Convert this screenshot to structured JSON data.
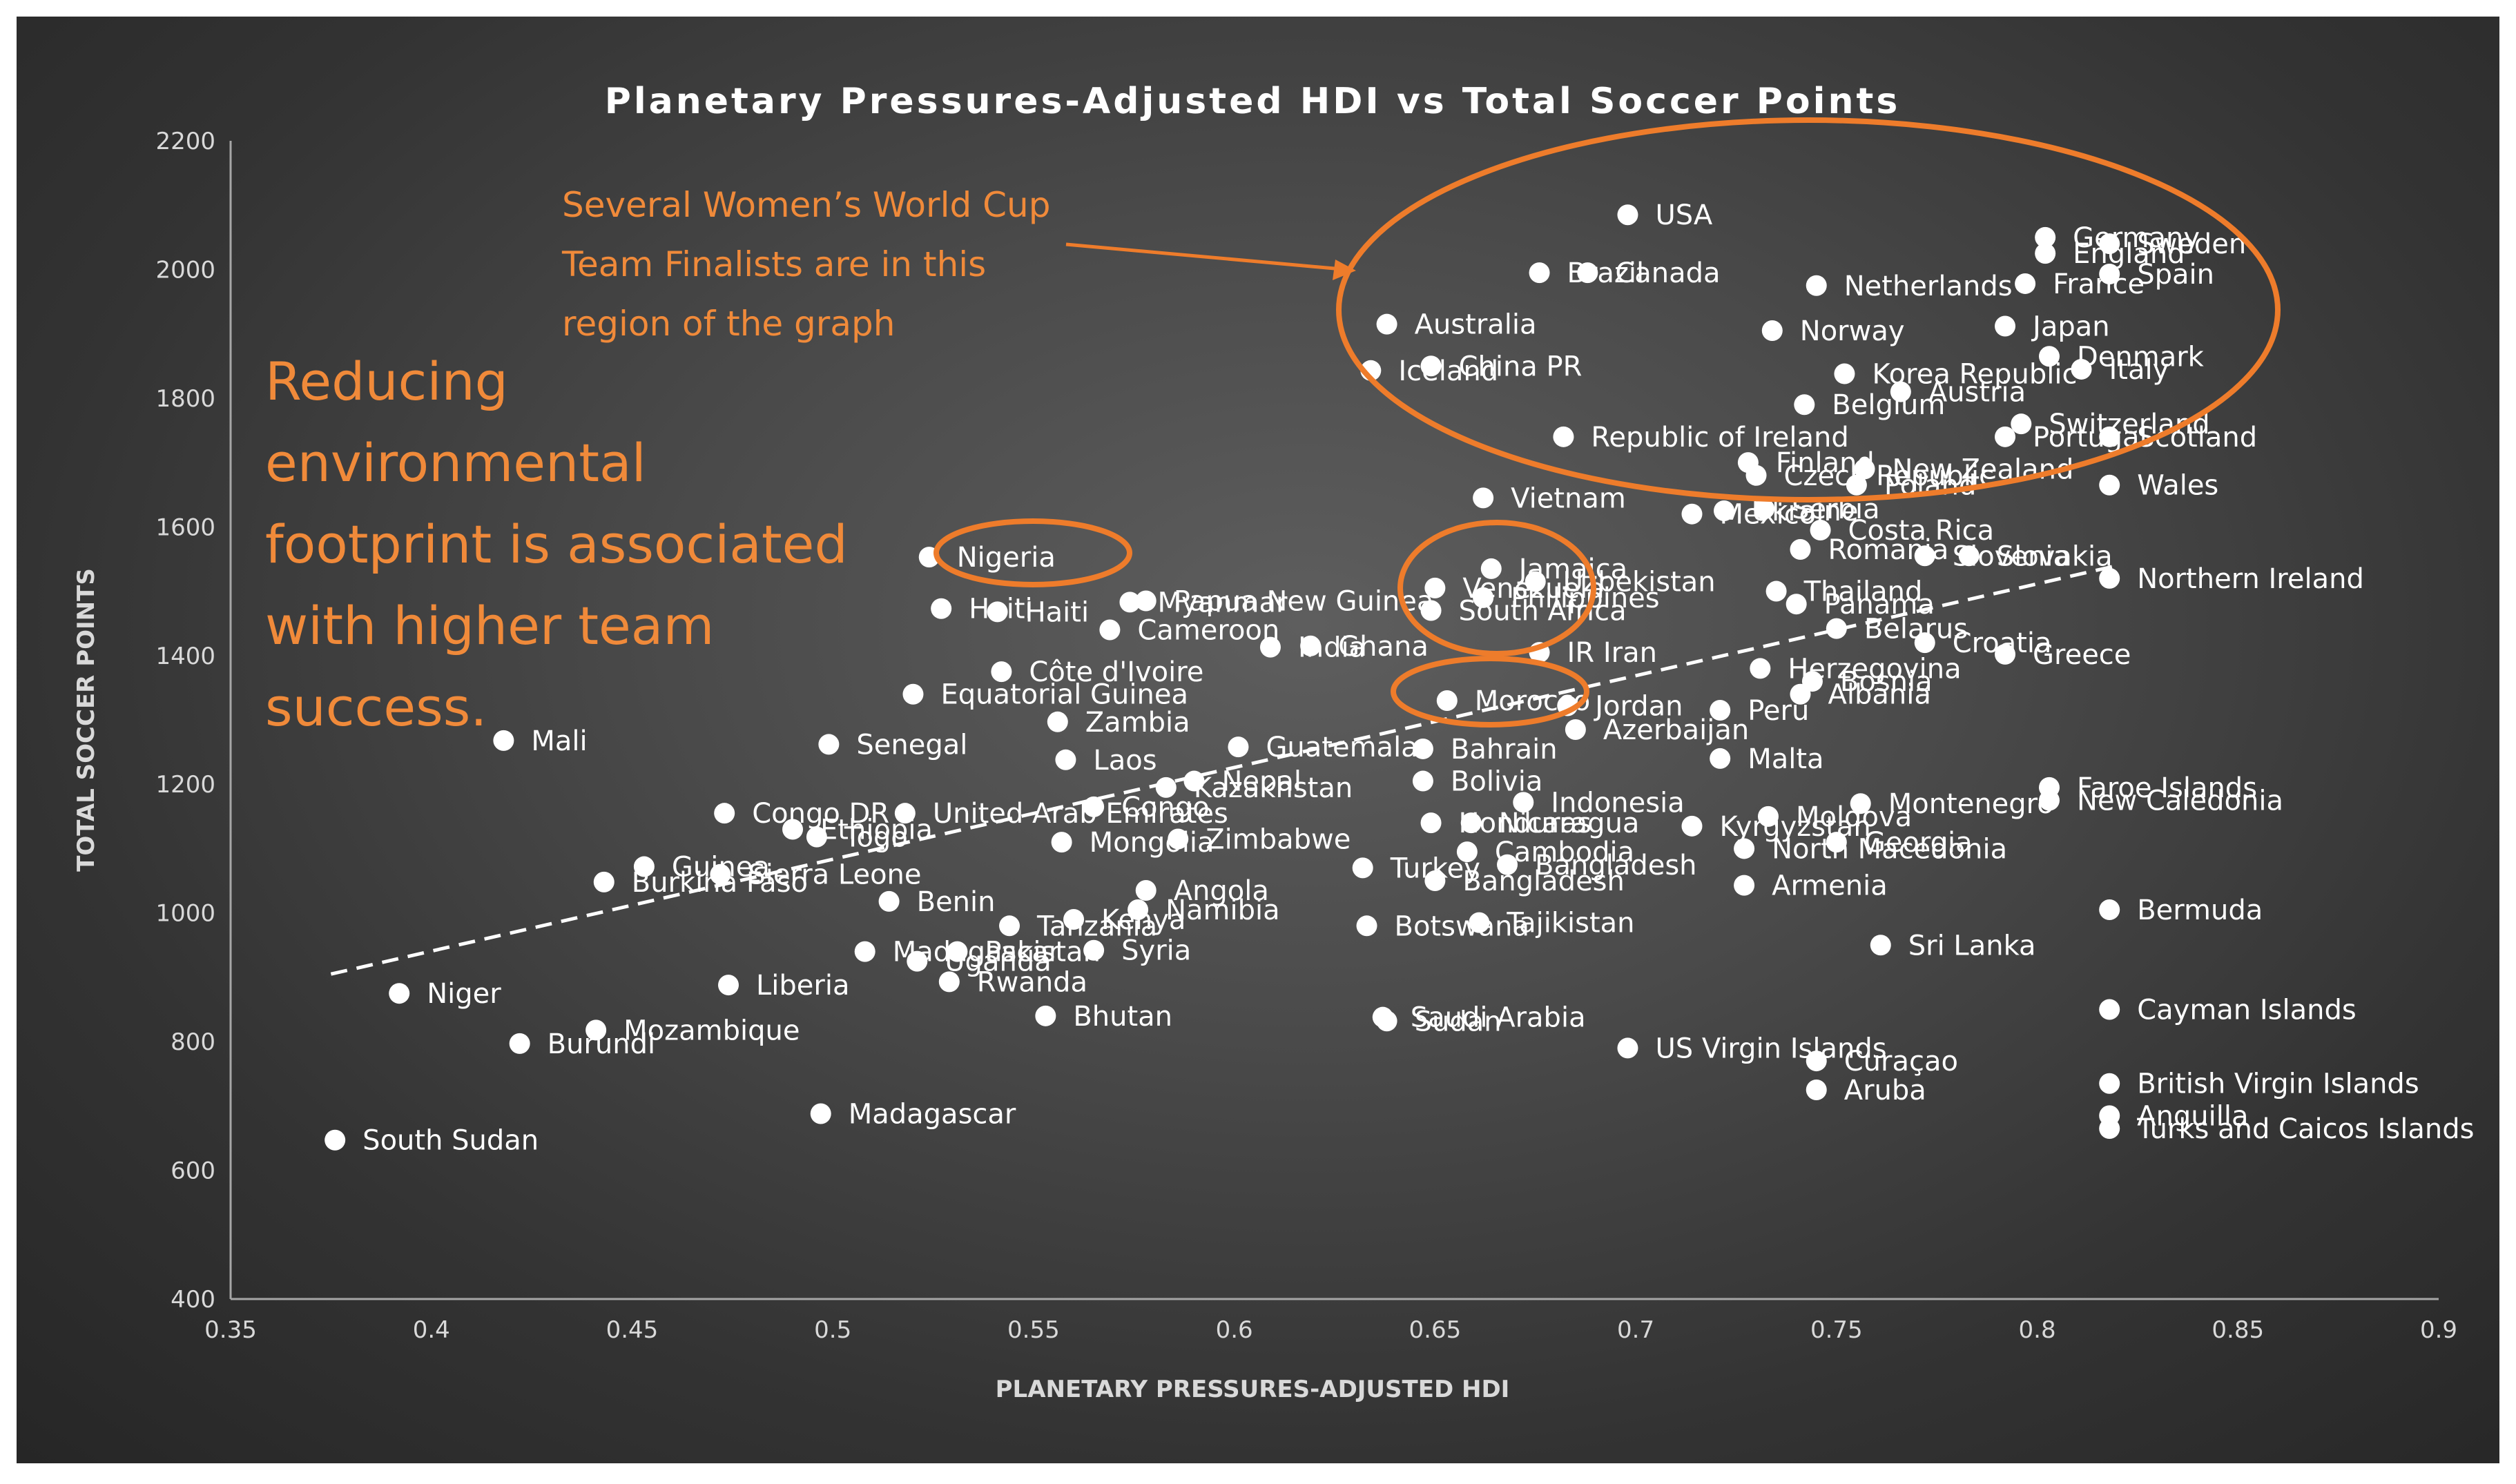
{
  "chart_data": {
    "type": "scatter",
    "title": "Planetary Pressures-Adjusted HDI vs Total Soccer Points",
    "xlabel": "PLANETARY PRESSURES-ADJUSTED HDI",
    "ylabel": "TOTAL SOCCER POINTS",
    "xlim": [
      0.35,
      0.9
    ],
    "ylim": [
      400,
      2200
    ],
    "xticks": [
      "0.35",
      "0.4",
      "0.45",
      "0.5",
      "0.55",
      "0.6",
      "0.65",
      "0.7",
      "0.75",
      "0.8",
      "0.85",
      "0.9"
    ],
    "yticks": [
      "400",
      "600",
      "800",
      "1000",
      "1200",
      "1400",
      "1600",
      "1800",
      "2000",
      "2200"
    ],
    "grid": false,
    "trendline": {
      "style": "dashed",
      "from": [
        0.375,
        905
      ],
      "to": [
        0.82,
        1540
      ]
    },
    "annotations": [
      {
        "id": "finalists",
        "lines": [
          "Several Women’s World Cup",
          "Team Finalists are in this",
          "region of the graph"
        ]
      },
      {
        "id": "footprint",
        "lines": [
          "Reducing",
          "environmental",
          "footprint is associated",
          "with higher team",
          "success."
        ]
      }
    ],
    "highlight_colors": {
      "annotation": "#f08a3a",
      "ellipse": "#ee7c2b"
    },
    "points": [
      {
        "x": 0.698,
        "y": 2085,
        "label": "USA"
      },
      {
        "x": 0.676,
        "y": 1995,
        "label": "Brazil"
      },
      {
        "x": 0.688,
        "y": 1995,
        "label": "Canada"
      },
      {
        "x": 0.745,
        "y": 1975,
        "label": "Netherlands"
      },
      {
        "x": 0.638,
        "y": 1915,
        "label": "Australia"
      },
      {
        "x": 0.734,
        "y": 1905,
        "label": "Norway"
      },
      {
        "x": 0.649,
        "y": 1850,
        "label": "China PR"
      },
      {
        "x": 0.634,
        "y": 1843,
        "label": "Iceland"
      },
      {
        "x": 0.802,
        "y": 2050,
        "label": "Germany"
      },
      {
        "x": 0.818,
        "y": 2040,
        "label": "Sweden"
      },
      {
        "x": 0.802,
        "y": 2025,
        "label": "England"
      },
      {
        "x": 0.818,
        "y": 1993,
        "label": "Spain"
      },
      {
        "x": 0.797,
        "y": 1978,
        "label": "France"
      },
      {
        "x": 0.792,
        "y": 1912,
        "label": "Japan"
      },
      {
        "x": 0.803,
        "y": 1865,
        "label": "Denmark"
      },
      {
        "x": 0.752,
        "y": 1838,
        "label": "Korea Republic"
      },
      {
        "x": 0.811,
        "y": 1845,
        "label": "Italy"
      },
      {
        "x": 0.766,
        "y": 1810,
        "label": "Austria"
      },
      {
        "x": 0.742,
        "y": 1790,
        "label": "Belgium"
      },
      {
        "x": 0.796,
        "y": 1760,
        "label": "Switzerland"
      },
      {
        "x": 0.792,
        "y": 1740,
        "label": "Portugal"
      },
      {
        "x": 0.818,
        "y": 1740,
        "label": "Scotland"
      },
      {
        "x": 0.682,
        "y": 1740,
        "label": "Republic of Ireland"
      },
      {
        "x": 0.728,
        "y": 1700,
        "label": "Finland"
      },
      {
        "x": 0.757,
        "y": 1690,
        "label": "New Zealand"
      },
      {
        "x": 0.73,
        "y": 1680,
        "label": "Czech Republic"
      },
      {
        "x": 0.755,
        "y": 1665,
        "label": "Poland"
      },
      {
        "x": 0.818,
        "y": 1665,
        "label": "Wales"
      },
      {
        "x": 0.662,
        "y": 1645,
        "label": "Vietnam"
      },
      {
        "x": 0.714,
        "y": 1620,
        "label": "Mexico"
      },
      {
        "x": 0.722,
        "y": 1625,
        "label": "Ukraine"
      },
      {
        "x": 0.732,
        "y": 1628,
        "label": "Serbia"
      },
      {
        "x": 0.746,
        "y": 1595,
        "label": "Costa Rica"
      },
      {
        "x": 0.741,
        "y": 1565,
        "label": "Romania"
      },
      {
        "x": 0.772,
        "y": 1555,
        "label": "Slovenia"
      },
      {
        "x": 0.783,
        "y": 1555,
        "label": "Slovakia"
      },
      {
        "x": 0.818,
        "y": 1520,
        "label": "Northern Ireland"
      },
      {
        "x": 0.524,
        "y": 1553,
        "label": "Nigeria"
      },
      {
        "x": 0.664,
        "y": 1535,
        "label": "Jamaica"
      },
      {
        "x": 0.675,
        "y": 1515,
        "label": "Uzbekistan"
      },
      {
        "x": 0.65,
        "y": 1505,
        "label": "Venezuela"
      },
      {
        "x": 0.662,
        "y": 1490,
        "label": "Philippines"
      },
      {
        "x": 0.649,
        "y": 1470,
        "label": "South Africa"
      },
      {
        "x": 0.735,
        "y": 1500,
        "label": "Thailand"
      },
      {
        "x": 0.74,
        "y": 1480,
        "label": "Panama"
      },
      {
        "x": 0.578,
        "y": 1485,
        "label": "Papua New Guinea"
      },
      {
        "x": 0.574,
        "y": 1483,
        "label": "Myanmar"
      },
      {
        "x": 0.527,
        "y": 1473,
        "label": "Haiti"
      },
      {
        "x": 0.541,
        "y": 1468,
        "label": "Haiti"
      },
      {
        "x": 0.569,
        "y": 1440,
        "label": "Cameroon"
      },
      {
        "x": 0.609,
        "y": 1413,
        "label": "India"
      },
      {
        "x": 0.619,
        "y": 1415,
        "label": "Ghana"
      },
      {
        "x": 0.676,
        "y": 1405,
        "label": "IR Iran"
      },
      {
        "x": 0.75,
        "y": 1442,
        "label": "Belarus"
      },
      {
        "x": 0.772,
        "y": 1420,
        "label": "Croatia"
      },
      {
        "x": 0.792,
        "y": 1402,
        "label": "Greece"
      },
      {
        "x": 0.731,
        "y": 1380,
        "label": "Herzegovina"
      },
      {
        "x": 0.744,
        "y": 1360,
        "label": "Bosnia"
      },
      {
        "x": 0.741,
        "y": 1340,
        "label": "Albania"
      },
      {
        "x": 0.542,
        "y": 1375,
        "label": "Côte d'Ivoire"
      },
      {
        "x": 0.52,
        "y": 1340,
        "label": "Equatorial Guinea"
      },
      {
        "x": 0.653,
        "y": 1330,
        "label": "Morocco"
      },
      {
        "x": 0.683,
        "y": 1322,
        "label": "Jordan"
      },
      {
        "x": 0.721,
        "y": 1315,
        "label": "Peru"
      },
      {
        "x": 0.685,
        "y": 1285,
        "label": "Azerbaijan"
      },
      {
        "x": 0.556,
        "y": 1297,
        "label": "Zambia"
      },
      {
        "x": 0.418,
        "y": 1268,
        "label": "Mali"
      },
      {
        "x": 0.499,
        "y": 1262,
        "label": "Senegal"
      },
      {
        "x": 0.601,
        "y": 1258,
        "label": "Guatemala"
      },
      {
        "x": 0.647,
        "y": 1255,
        "label": "Bahrain"
      },
      {
        "x": 0.558,
        "y": 1238,
        "label": "Laos"
      },
      {
        "x": 0.721,
        "y": 1240,
        "label": "Malta"
      },
      {
        "x": 0.647,
        "y": 1205,
        "label": "Bolivia"
      },
      {
        "x": 0.583,
        "y": 1195,
        "label": "Kazakhstan"
      },
      {
        "x": 0.59,
        "y": 1205,
        "label": "Nepal"
      },
      {
        "x": 0.803,
        "y": 1195,
        "label": "Faroe Islands"
      },
      {
        "x": 0.803,
        "y": 1175,
        "label": "New Caledonia"
      },
      {
        "x": 0.756,
        "y": 1170,
        "label": "Montenegro"
      },
      {
        "x": 0.473,
        "y": 1155,
        "label": "Congo DR"
      },
      {
        "x": 0.518,
        "y": 1155,
        "label": "United Arab Emirates"
      },
      {
        "x": 0.565,
        "y": 1165,
        "label": "Congo"
      },
      {
        "x": 0.672,
        "y": 1172,
        "label": "Indonesia"
      },
      {
        "x": 0.649,
        "y": 1140,
        "label": "Honduras"
      },
      {
        "x": 0.659,
        "y": 1140,
        "label": "Nicaragua"
      },
      {
        "x": 0.733,
        "y": 1150,
        "label": "Moldova"
      },
      {
        "x": 0.49,
        "y": 1130,
        "label": "Ethiopia"
      },
      {
        "x": 0.496,
        "y": 1118,
        "label": "Togo"
      },
      {
        "x": 0.557,
        "y": 1110,
        "label": "Mongolia"
      },
      {
        "x": 0.586,
        "y": 1115,
        "label": "Zimbabwe"
      },
      {
        "x": 0.714,
        "y": 1135,
        "label": "Kyrgyzstan"
      },
      {
        "x": 0.75,
        "y": 1110,
        "label": "Georgia"
      },
      {
        "x": 0.658,
        "y": 1095,
        "label": "Cambodia"
      },
      {
        "x": 0.727,
        "y": 1100,
        "label": "North Macedonia"
      },
      {
        "x": 0.453,
        "y": 1072,
        "label": "Guinea"
      },
      {
        "x": 0.632,
        "y": 1070,
        "label": "Turkey"
      },
      {
        "x": 0.668,
        "y": 1075,
        "label": "Bangladesh"
      },
      {
        "x": 0.472,
        "y": 1060,
        "label": "Sierra Leone"
      },
      {
        "x": 0.443,
        "y": 1048,
        "label": "Burkina Faso"
      },
      {
        "x": 0.65,
        "y": 1050,
        "label": "Bangladesh"
      },
      {
        "x": 0.727,
        "y": 1043,
        "label": "Armenia"
      },
      {
        "x": 0.578,
        "y": 1035,
        "label": "Angola"
      },
      {
        "x": 0.514,
        "y": 1018,
        "label": "Benin"
      },
      {
        "x": 0.576,
        "y": 1005,
        "label": "Namibia"
      },
      {
        "x": 0.818,
        "y": 1005,
        "label": "Bermuda"
      },
      {
        "x": 0.661,
        "y": 985,
        "label": "Tajikistan"
      },
      {
        "x": 0.633,
        "y": 980,
        "label": "Botswana"
      },
      {
        "x": 0.544,
        "y": 980,
        "label": "Tanzania"
      },
      {
        "x": 0.56,
        "y": 990,
        "label": "Kenya"
      },
      {
        "x": 0.761,
        "y": 950,
        "label": "Sri Lanka"
      },
      {
        "x": 0.508,
        "y": 940,
        "label": "Madagascar"
      },
      {
        "x": 0.531,
        "y": 940,
        "label": "Pakistan"
      },
      {
        "x": 0.565,
        "y": 942,
        "label": "Syria"
      },
      {
        "x": 0.521,
        "y": 925,
        "label": "Uganda"
      },
      {
        "x": 0.474,
        "y": 888,
        "label": "Liberia"
      },
      {
        "x": 0.529,
        "y": 893,
        "label": "Rwanda"
      },
      {
        "x": 0.392,
        "y": 875,
        "label": "Niger"
      },
      {
        "x": 0.818,
        "y": 850,
        "label": "Cayman Islands"
      },
      {
        "x": 0.553,
        "y": 840,
        "label": "Bhutan"
      },
      {
        "x": 0.637,
        "y": 838,
        "label": "Saudi Arabia"
      },
      {
        "x": 0.638,
        "y": 832,
        "label": "Sudan"
      },
      {
        "x": 0.441,
        "y": 818,
        "label": "Mozambique"
      },
      {
        "x": 0.422,
        "y": 797,
        "label": "Burundi"
      },
      {
        "x": 0.698,
        "y": 790,
        "label": "US Virgin Islands"
      },
      {
        "x": 0.745,
        "y": 770,
        "label": "Curaçao"
      },
      {
        "x": 0.745,
        "y": 725,
        "label": "Aruba"
      },
      {
        "x": 0.818,
        "y": 735,
        "label": "British Virgin Islands"
      },
      {
        "x": 0.818,
        "y": 685,
        "label": "Anguilla"
      },
      {
        "x": 0.818,
        "y": 665,
        "label": "Turks and Caicos Islands"
      },
      {
        "x": 0.497,
        "y": 688,
        "label": "Madagascar"
      },
      {
        "x": 0.376,
        "y": 647,
        "label": "South Sudan"
      }
    ]
  }
}
